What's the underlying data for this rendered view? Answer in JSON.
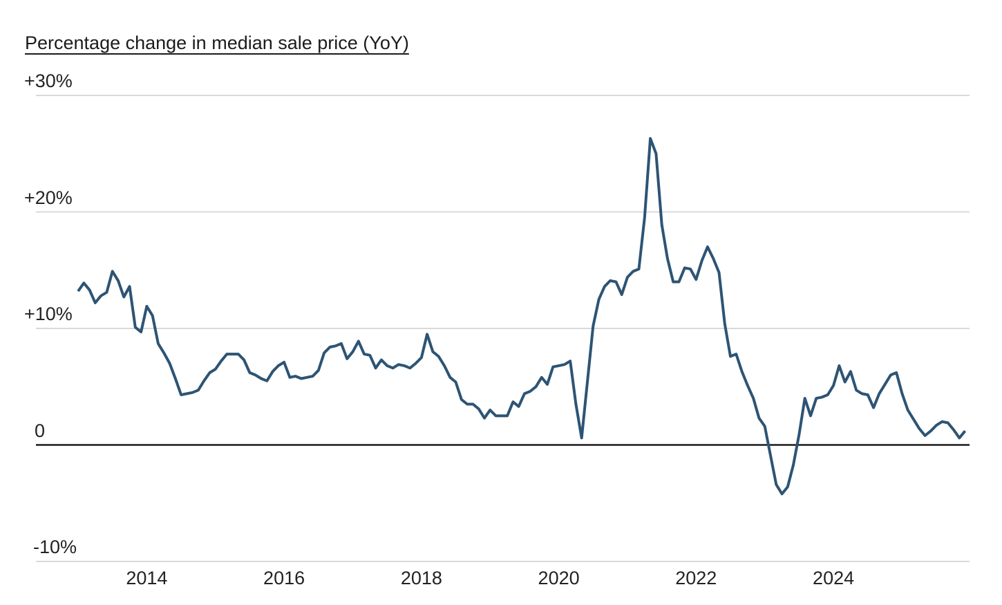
{
  "title": "Percentage change in median sale price (YoY)",
  "colors": {
    "line": "#2d5474",
    "gridline": "#d9d9d9",
    "zero_line": "#1a1a1a",
    "text": "#232323",
    "background": "#ffffff"
  },
  "chart_data": {
    "type": "line",
    "title": "Percentage change in median sale price (YoY)",
    "unit": "percent",
    "frequency": "monthly",
    "x_start": "2013-01",
    "x_end": "2025-12",
    "xlabel": "",
    "ylabel": "Percentage change in median sale price (YoY)",
    "ylim": [
      -10,
      30
    ],
    "grid": true,
    "legend": "none",
    "y_ticks": [
      {
        "label": "+30%",
        "value": 30
      },
      {
        "label": "+20%",
        "value": 20
      },
      {
        "label": "+10%",
        "value": 10
      },
      {
        "label": "0",
        "value": 0
      },
      {
        "label": "-10%",
        "value": -10
      }
    ],
    "x_ticks": [
      {
        "label": "2014",
        "year": 2014
      },
      {
        "label": "2016",
        "year": 2016
      },
      {
        "label": "2018",
        "year": 2018
      },
      {
        "label": "2020",
        "year": 2020
      },
      {
        "label": "2022",
        "year": 2022
      },
      {
        "label": "2024",
        "year": 2024
      }
    ],
    "series": [
      {
        "name": "Percentage change in median sale price (YoY)",
        "values": [
          13.2,
          13.9,
          13.3,
          12.2,
          12.8,
          13.1,
          14.9,
          14.1,
          12.7,
          13.6,
          10.1,
          9.7,
          11.9,
          11.1,
          8.7,
          7.9,
          7.0,
          5.7,
          4.3,
          4.4,
          4.5,
          4.7,
          5.5,
          6.2,
          6.5,
          7.2,
          7.8,
          7.8,
          7.8,
          7.3,
          6.2,
          6.0,
          5.7,
          5.5,
          6.3,
          6.8,
          7.1,
          5.8,
          5.9,
          5.7,
          5.8,
          5.9,
          6.4,
          7.9,
          8.4,
          8.5,
          8.7,
          7.4,
          8.0,
          8.9,
          7.8,
          7.7,
          6.6,
          7.3,
          6.8,
          6.6,
          6.9,
          6.8,
          6.6,
          7.0,
          7.5,
          9.5,
          8.0,
          7.6,
          6.8,
          5.8,
          5.4,
          3.9,
          3.5,
          3.5,
          3.1,
          2.3,
          3.0,
          2.5,
          2.5,
          2.5,
          3.7,
          3.3,
          4.4,
          4.6,
          5.0,
          5.8,
          5.2,
          6.7,
          6.8,
          6.9,
          7.2,
          3.5,
          0.6,
          5.4,
          10.2,
          12.5,
          13.6,
          14.1,
          14.0,
          12.9,
          14.4,
          14.9,
          15.1,
          19.5,
          26.3,
          25.0,
          18.9,
          16.0,
          14.0,
          14.0,
          15.2,
          15.1,
          14.2,
          15.8,
          17.0,
          16.0,
          14.8,
          10.4,
          7.6,
          7.8,
          6.3,
          5.1,
          4.0,
          2.3,
          1.6,
          -0.9,
          -3.4,
          -4.2,
          -3.6,
          -1.7,
          0.9,
          4.0,
          2.5,
          4.0,
          4.1,
          4.3,
          5.1,
          6.8,
          5.4,
          6.3,
          4.7,
          4.4,
          4.3,
          3.2,
          4.4,
          5.2,
          6.0,
          6.2,
          4.4,
          3.0,
          2.2,
          1.4,
          0.8,
          1.2,
          1.7,
          2.0,
          1.9,
          1.3,
          0.6,
          1.2
        ]
      }
    ]
  }
}
